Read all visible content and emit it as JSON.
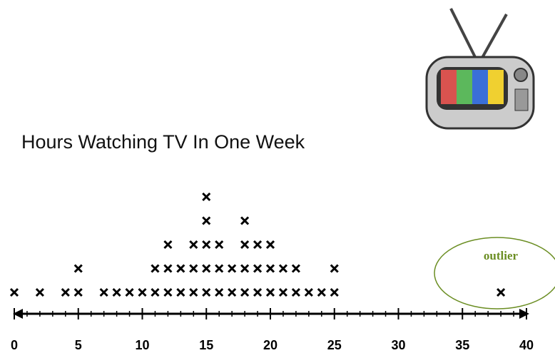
{
  "chart_data": {
    "type": "dot",
    "title": "Hours Watching TV In One Week",
    "x": [
      0,
      2,
      4,
      5,
      7,
      8,
      9,
      10,
      11,
      12,
      13,
      14,
      15,
      16,
      17,
      18,
      19,
      20,
      21,
      22,
      23,
      24,
      25,
      38
    ],
    "counts": [
      1,
      1,
      1,
      2,
      1,
      1,
      1,
      1,
      2,
      3,
      2,
      3,
      5,
      3,
      2,
      4,
      3,
      3,
      2,
      2,
      1,
      1,
      2,
      1
    ],
    "xlim": [
      0,
      40
    ],
    "xticks": [
      0,
      5,
      10,
      15,
      20,
      25,
      30,
      35,
      40
    ],
    "xminorticks": [
      1,
      2,
      3,
      4,
      6,
      7,
      8,
      9,
      11,
      12,
      13,
      14,
      16,
      17,
      18,
      19,
      21,
      22,
      23,
      24,
      26,
      27,
      28,
      29,
      31,
      32,
      33,
      34,
      36,
      37,
      38,
      39
    ],
    "color": "#000000",
    "annotation": {
      "text": "outlier",
      "color": "#6b8e23"
    }
  }
}
